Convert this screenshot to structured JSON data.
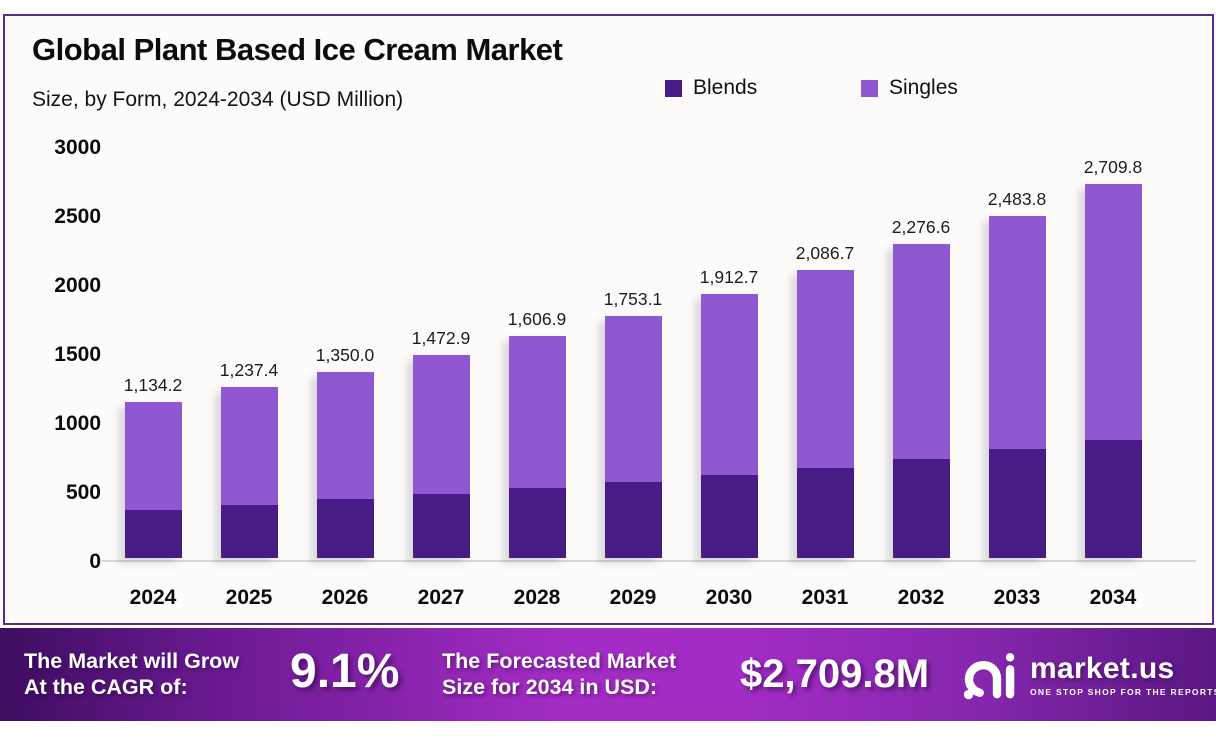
{
  "title": "Global Plant Based Ice Cream Market",
  "subtitle": "Size, by Form, 2024-2034 (USD Million)",
  "colors": {
    "blends": "#471c87",
    "singles": "#8f57d2",
    "border": "#5b2a8c",
    "axis_line": "#d8d8d8",
    "footer_gradient_start": "#3e0d61",
    "footer_gradient_mid": "#a32cc4",
    "footer_gradient_end": "#5a1783"
  },
  "chart_data": {
    "type": "bar",
    "stacked": true,
    "grid": false,
    "legend_position": "top-right",
    "categories": [
      "2024",
      "2025",
      "2026",
      "2027",
      "2028",
      "2029",
      "2030",
      "2031",
      "2032",
      "2033",
      "2034"
    ],
    "series": [
      {
        "name": "Blends",
        "color": "#471c87",
        "values": [
          350.0,
          385.0,
          425.0,
          465.0,
          505.0,
          550.0,
          600.0,
          655.0,
          715.0,
          790.0,
          855.0
        ]
      },
      {
        "name": "Singles",
        "color": "#8f57d2",
        "values": [
          784.2,
          852.4,
          925.0,
          1007.9,
          1101.9,
          1203.1,
          1312.7,
          1431.7,
          1561.6,
          1693.8,
          1854.8
        ]
      }
    ],
    "totals": [
      1134.2,
      1237.4,
      1350.0,
      1472.9,
      1606.9,
      1753.1,
      1912.7,
      2086.7,
      2276.6,
      2483.8,
      2709.8
    ],
    "total_labels": [
      "1,134.2",
      "1,237.4",
      "1,350.0",
      "1,472.9",
      "1,606.9",
      "1,753.1",
      "1,912.7",
      "2,086.7",
      "2,276.6",
      "2,483.8",
      "2,709.8"
    ],
    "xlabel": "",
    "ylabel": "",
    "ylim": [
      0,
      3000
    ],
    "yticks": [
      0,
      500,
      1000,
      1500,
      2000,
      2500,
      3000
    ]
  },
  "footer": {
    "cagr_label_line1": "The Market will Grow",
    "cagr_label_line2": "At the CAGR of:",
    "cagr_value": "9.1%",
    "forecast_label_line1": "The Forecasted Market",
    "forecast_label_line2": "Size for 2034 in USD:",
    "forecast_value": "$2,709.8M",
    "brand": {
      "name": "market.us",
      "tagline": "ONE STOP SHOP FOR THE REPORTS"
    }
  }
}
